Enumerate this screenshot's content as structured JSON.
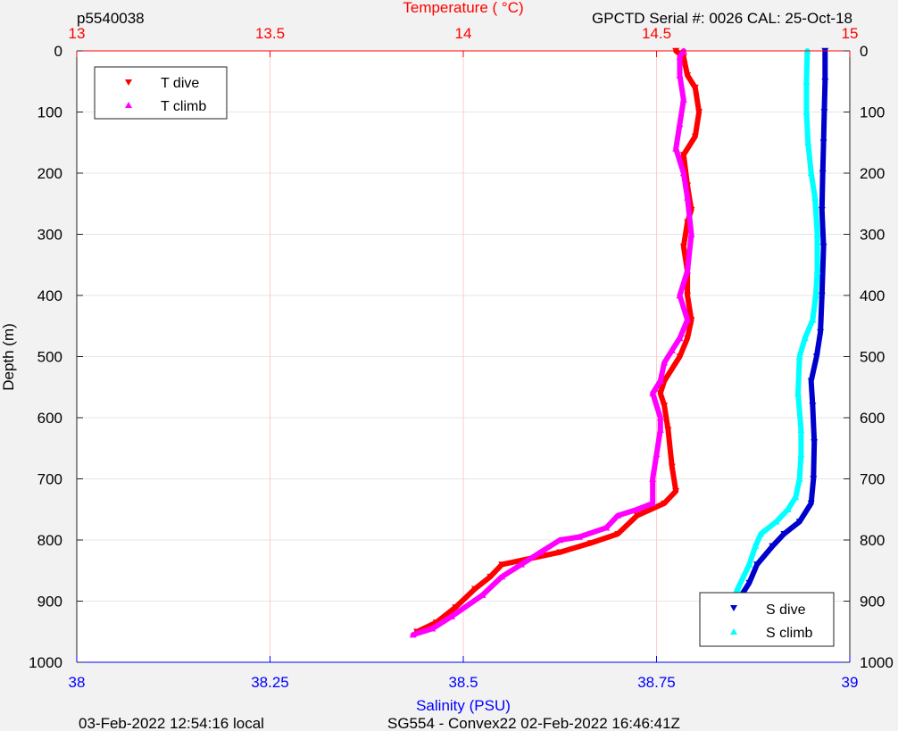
{
  "header": {
    "left": "p5540038",
    "right": "GPCTD Serial #: 0026 CAL: 25-Oct-18"
  },
  "footer": {
    "left": "03-Feb-2022 12:54:16 local",
    "center": "SG554 - Convex22 02-Feb-2022 16:46:41Z"
  },
  "colors": {
    "temperature_axis": "#ff0000",
    "salinity_axis": "#0000ff",
    "t_dive": "#ff0000",
    "t_climb": "#ff00ff",
    "s_dive": "#0000cd",
    "s_climb": "#00ffff",
    "grid_vertical": "#ffcccc",
    "grid_horizontal": "#e6e6e6"
  },
  "chart_data": {
    "type": "line",
    "top_axis": {
      "label": "Temperature (    °C)",
      "range": [
        13,
        15
      ],
      "ticks": [
        13,
        13.5,
        14,
        14.5,
        15
      ],
      "tick_labels": [
        "13",
        "13.5",
        "14",
        "14.5",
        "15"
      ]
    },
    "bottom_axis": {
      "label": "Salinity (PSU)",
      "range": [
        38,
        39
      ],
      "ticks": [
        38,
        38.25,
        38.5,
        38.75,
        39
      ],
      "tick_labels": [
        "38",
        "38.25",
        "38.5",
        "38.75",
        "39"
      ]
    },
    "y_axis": {
      "label": "Depth (m)",
      "range": [
        0,
        1000
      ],
      "reversed": true,
      "ticks": [
        0,
        100,
        200,
        300,
        400,
        500,
        600,
        700,
        800,
        900,
        1000
      ],
      "tick_labels": [
        "0",
        "100",
        "200",
        "300",
        "400",
        "500",
        "600",
        "700",
        "800",
        "900",
        "1000"
      ]
    },
    "grid": true,
    "legends": [
      {
        "placement": "top-left",
        "entries": [
          "t_dive",
          "t_climb"
        ]
      },
      {
        "placement": "bottom-right",
        "entries": [
          "s_dive",
          "s_climb"
        ]
      }
    ],
    "series": [
      {
        "key": "t_dive",
        "name": "T dive",
        "axis": "temperature",
        "marker": "triangle-down",
        "points": [
          [
            14.55,
            0
          ],
          [
            14.57,
            10
          ],
          [
            14.58,
            40
          ],
          [
            14.6,
            60
          ],
          [
            14.61,
            100
          ],
          [
            14.6,
            140
          ],
          [
            14.57,
            170
          ],
          [
            14.58,
            220
          ],
          [
            14.59,
            260
          ],
          [
            14.58,
            280
          ],
          [
            14.57,
            320
          ],
          [
            14.58,
            360
          ],
          [
            14.58,
            400
          ],
          [
            14.59,
            440
          ],
          [
            14.58,
            470
          ],
          [
            14.56,
            500
          ],
          [
            14.52,
            540
          ],
          [
            14.51,
            560
          ],
          [
            14.52,
            580
          ],
          [
            14.53,
            620
          ],
          [
            14.54,
            680
          ],
          [
            14.55,
            720
          ],
          [
            14.52,
            740
          ],
          [
            14.45,
            760
          ],
          [
            14.4,
            790
          ],
          [
            14.33,
            805
          ],
          [
            14.25,
            820
          ],
          [
            14.1,
            840
          ],
          [
            14.07,
            860
          ],
          [
            14.03,
            880
          ],
          [
            13.98,
            910
          ],
          [
            13.93,
            935
          ],
          [
            13.88,
            950
          ]
        ]
      },
      {
        "key": "t_climb",
        "name": "T climb",
        "axis": "temperature",
        "marker": "triangle-up",
        "points": [
          [
            13.87,
            955
          ],
          [
            13.92,
            945
          ],
          [
            13.97,
            925
          ],
          [
            14.05,
            890
          ],
          [
            14.1,
            860
          ],
          [
            14.15,
            840
          ],
          [
            14.2,
            820
          ],
          [
            14.25,
            800
          ],
          [
            14.3,
            795
          ],
          [
            14.37,
            780
          ],
          [
            14.4,
            760
          ],
          [
            14.45,
            750
          ],
          [
            14.49,
            740
          ],
          [
            14.49,
            700
          ],
          [
            14.5,
            660
          ],
          [
            14.51,
            620
          ],
          [
            14.51,
            600
          ],
          [
            14.49,
            560
          ],
          [
            14.51,
            540
          ],
          [
            14.52,
            510
          ],
          [
            14.54,
            490
          ],
          [
            14.56,
            470
          ],
          [
            14.58,
            440
          ],
          [
            14.56,
            400
          ],
          [
            14.58,
            360
          ],
          [
            14.59,
            300
          ],
          [
            14.58,
            240
          ],
          [
            14.57,
            200
          ],
          [
            14.55,
            160
          ],
          [
            14.56,
            120
          ],
          [
            14.57,
            80
          ],
          [
            14.56,
            40
          ],
          [
            14.56,
            10
          ],
          [
            14.57,
            0
          ]
        ]
      },
      {
        "key": "s_dive",
        "name": "S dive",
        "axis": "salinity",
        "marker": "triangle-down",
        "points": [
          [
            38.968,
            0
          ],
          [
            38.968,
            50
          ],
          [
            38.967,
            100
          ],
          [
            38.966,
            150
          ],
          [
            38.965,
            200
          ],
          [
            38.964,
            260
          ],
          [
            38.966,
            320
          ],
          [
            38.964,
            400
          ],
          [
            38.962,
            460
          ],
          [
            38.957,
            500
          ],
          [
            38.95,
            540
          ],
          [
            38.952,
            580
          ],
          [
            38.954,
            640
          ],
          [
            38.953,
            700
          ],
          [
            38.95,
            740
          ],
          [
            38.935,
            770
          ],
          [
            38.915,
            790
          ],
          [
            38.9,
            810
          ],
          [
            38.88,
            840
          ],
          [
            38.87,
            870
          ],
          [
            38.855,
            900
          ],
          [
            38.84,
            930
          ],
          [
            38.83,
            950
          ]
        ]
      },
      {
        "key": "s_climb",
        "name": "S climb",
        "axis": "salinity",
        "marker": "triangle-up",
        "points": [
          [
            38.825,
            955
          ],
          [
            38.835,
            940
          ],
          [
            38.845,
            910
          ],
          [
            38.855,
            880
          ],
          [
            38.87,
            840
          ],
          [
            38.878,
            810
          ],
          [
            38.885,
            790
          ],
          [
            38.905,
            770
          ],
          [
            38.92,
            750
          ],
          [
            38.93,
            730
          ],
          [
            38.935,
            700
          ],
          [
            38.937,
            660
          ],
          [
            38.937,
            620
          ],
          [
            38.933,
            560
          ],
          [
            38.935,
            500
          ],
          [
            38.942,
            470
          ],
          [
            38.952,
            440
          ],
          [
            38.956,
            400
          ],
          [
            38.958,
            360
          ],
          [
            38.958,
            300
          ],
          [
            38.955,
            240
          ],
          [
            38.95,
            200
          ],
          [
            38.946,
            150
          ],
          [
            38.944,
            100
          ],
          [
            38.944,
            50
          ],
          [
            38.945,
            0
          ]
        ]
      }
    ]
  }
}
